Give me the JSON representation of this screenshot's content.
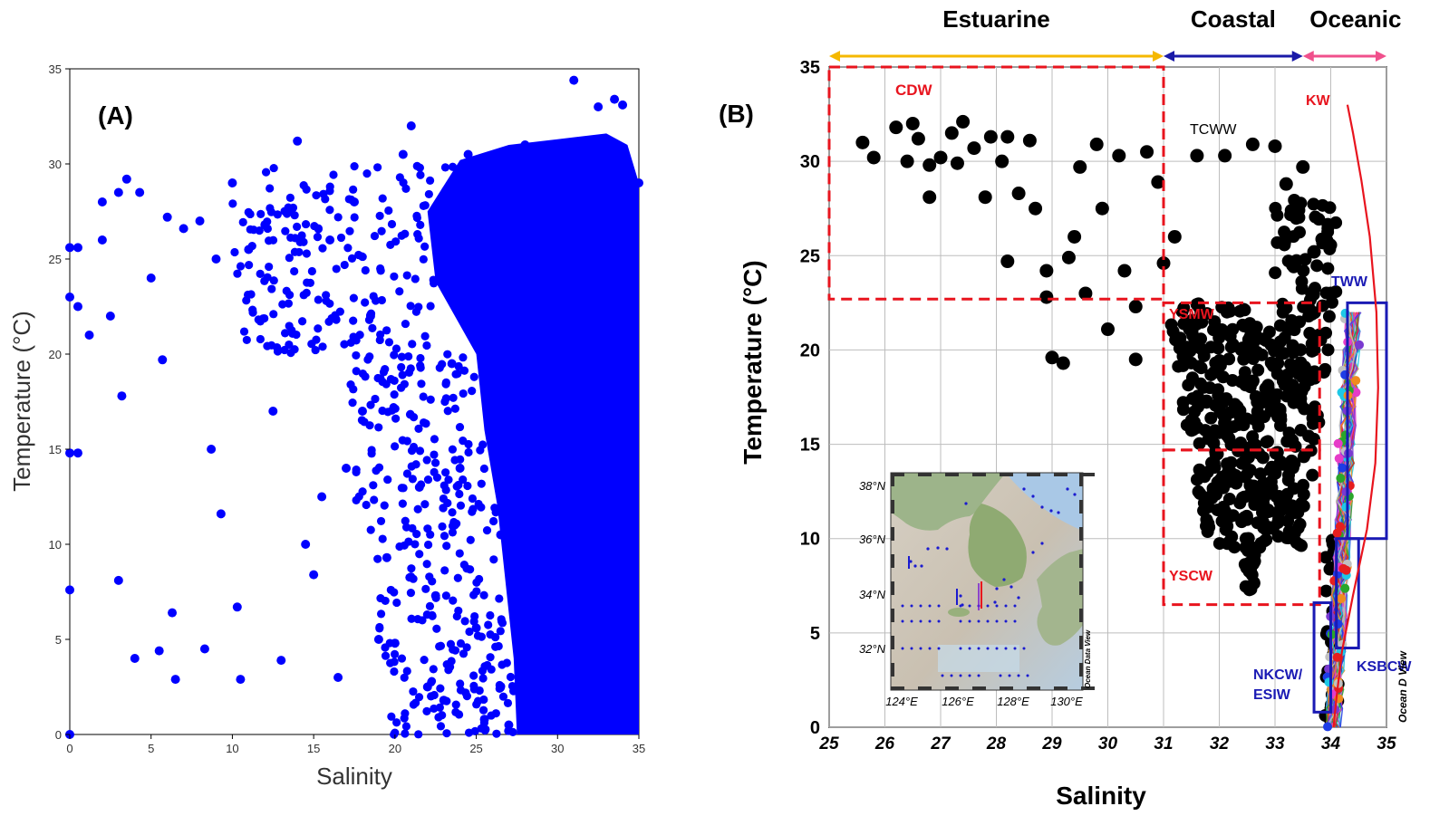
{
  "panel_a": {
    "label": "(A)",
    "xlabel": "Salinity",
    "ylabel": "Temperature (°C)"
  },
  "panel_b": {
    "label": "(B)",
    "xlabel": "Salinity",
    "ylabel": "Temperature (°C)",
    "ranges": [
      {
        "label": "Estuarine",
        "from": 25,
        "to": 31,
        "color": "#f5b800"
      },
      {
        "label": "Coastal",
        "from": 31,
        "to": 33.5,
        "color": "#1a1aa8"
      },
      {
        "label": "Oceanic",
        "from": 33.5,
        "to": 35,
        "color": "#f0508c"
      }
    ],
    "water_masses": {
      "CDW": "CDW",
      "TCWW": "TCWW",
      "KW": "KW",
      "TWW": "TWW",
      "YSMW": "YSMW",
      "YSCW": "YSCW",
      "NKCW": "NKCW/",
      "ESIW": "ESIW",
      "KSBCW": "KSBCW"
    },
    "inset": {
      "lat_labels": [
        "38°N",
        "36°N",
        "34°N",
        "32°N"
      ],
      "lon_labels": [
        "124°E",
        "126°E",
        "128°E",
        "130°E"
      ],
      "watermark": "Ocean Data View",
      "edge_watermark": "Ocean D View"
    }
  },
  "chart_data": [
    {
      "type": "scatter",
      "title": "",
      "xlabel": "Salinity",
      "ylabel": "Temperature (°C)",
      "xlim": [
        0,
        35
      ],
      "ylim": [
        0,
        35
      ],
      "xticks": [
        0,
        5,
        10,
        15,
        20,
        25,
        30,
        35
      ],
      "yticks": [
        0,
        5,
        10,
        15,
        20,
        25,
        30,
        35
      ],
      "grid": false,
      "color": "#0000ff",
      "dense_region": {
        "salinity": [
          27,
          35
        ],
        "temperature": [
          0,
          31
        ]
      },
      "points": [
        [
          0,
          25.6
        ],
        [
          0,
          23
        ],
        [
          0,
          14.8
        ],
        [
          0,
          7.6
        ],
        [
          0,
          0
        ],
        [
          0.5,
          25.6
        ],
        [
          0.5,
          22.5
        ],
        [
          0.5,
          14.8
        ],
        [
          1.2,
          21
        ],
        [
          2,
          28
        ],
        [
          2,
          26
        ],
        [
          2.5,
          22
        ],
        [
          3,
          28.5
        ],
        [
          3,
          8.1
        ],
        [
          3.2,
          17.8
        ],
        [
          3.5,
          29.2
        ],
        [
          4,
          4
        ],
        [
          4.3,
          28.5
        ],
        [
          5,
          24
        ],
        [
          5.5,
          4.4
        ],
        [
          5.7,
          19.7
        ],
        [
          6,
          27.2
        ],
        [
          6.3,
          6.4
        ],
        [
          6.5,
          2.9
        ],
        [
          7,
          26.6
        ],
        [
          8,
          27
        ],
        [
          8.3,
          4.5
        ],
        [
          8.7,
          15
        ],
        [
          9,
          25
        ],
        [
          9.3,
          11.6
        ],
        [
          10,
          29
        ],
        [
          10.3,
          6.7
        ],
        [
          10.5,
          2.9
        ],
        [
          11,
          25.5
        ],
        [
          12,
          26.8
        ],
        [
          12.5,
          17
        ],
        [
          13,
          3.9
        ],
        [
          13.5,
          27.5
        ],
        [
          14,
          31.2
        ],
        [
          14.5,
          10
        ],
        [
          15,
          8.4
        ],
        [
          15.5,
          12.5
        ],
        [
          16,
          26
        ],
        [
          16.5,
          3
        ],
        [
          17,
          14
        ],
        [
          17.5,
          28
        ],
        [
          18,
          17
        ],
        [
          18.5,
          22
        ],
        [
          19,
          5
        ],
        [
          19.5,
          9.3
        ],
        [
          20,
          4.8
        ],
        [
          20.5,
          30.5
        ],
        [
          21,
          32
        ],
        [
          21.5,
          13
        ],
        [
          22,
          2.5
        ],
        [
          22.5,
          7.3
        ],
        [
          23,
          1.8
        ],
        [
          23.5,
          19.5
        ],
        [
          24,
          14
        ],
        [
          24.5,
          30.5
        ],
        [
          25,
          5.6
        ],
        [
          25.5,
          0.8
        ],
        [
          26,
          24
        ],
        [
          26.5,
          10.5
        ],
        [
          27,
          0.5
        ],
        [
          28,
          31
        ],
        [
          29,
          30.2
        ],
        [
          31,
          34.4
        ],
        [
          32.5,
          33
        ],
        [
          33.5,
          33.4
        ],
        [
          34,
          33.1
        ],
        [
          35,
          29
        ]
      ]
    },
    {
      "type": "scatter",
      "title": "",
      "xlabel": "Salinity",
      "ylabel": "Temperature (°C)",
      "xlim": [
        25,
        35
      ],
      "ylim": [
        0,
        35
      ],
      "xticks": [
        25,
        26,
        27,
        28,
        29,
        30,
        31,
        32,
        33,
        34,
        35
      ],
      "yticks": [
        0,
        5,
        10,
        15,
        20,
        25,
        30,
        35
      ],
      "grid": true,
      "color": "#000000",
      "points": [
        [
          25.6,
          31
        ],
        [
          25.8,
          30.2
        ],
        [
          26.2,
          31.8
        ],
        [
          26.4,
          30
        ],
        [
          26.5,
          32
        ],
        [
          26.6,
          31.2
        ],
        [
          26.8,
          29.8
        ],
        [
          26.8,
          28.1
        ],
        [
          27.0,
          30.2
        ],
        [
          27.2,
          31.5
        ],
        [
          27.3,
          29.9
        ],
        [
          27.4,
          32.1
        ],
        [
          27.6,
          30.7
        ],
        [
          27.8,
          28.1
        ],
        [
          27.9,
          31.3
        ],
        [
          28.1,
          30
        ],
        [
          28.2,
          31.3
        ],
        [
          28.2,
          24.7
        ],
        [
          28.4,
          28.3
        ],
        [
          28.6,
          31.1
        ],
        [
          28.7,
          27.5
        ],
        [
          28.9,
          24.2
        ],
        [
          28.9,
          22.8
        ],
        [
          29.0,
          19.6
        ],
        [
          29.2,
          19.3
        ],
        [
          29.3,
          24.9
        ],
        [
          29.4,
          26
        ],
        [
          29.5,
          29.7
        ],
        [
          29.6,
          23
        ],
        [
          29.8,
          30.9
        ],
        [
          29.9,
          27.5
        ],
        [
          30.0,
          21.1
        ],
        [
          30.2,
          30.3
        ],
        [
          30.3,
          24.2
        ],
        [
          30.5,
          22.3
        ],
        [
          30.5,
          19.5
        ],
        [
          30.7,
          30.5
        ],
        [
          30.9,
          28.9
        ],
        [
          31.0,
          24.6
        ],
        [
          31.2,
          26
        ],
        [
          31.6,
          30.3
        ],
        [
          32.1,
          30.3
        ],
        [
          32.6,
          30.9
        ],
        [
          33.0,
          30.8
        ],
        [
          33.2,
          28.8
        ],
        [
          33.5,
          29.7
        ],
        [
          33.7,
          25.2
        ],
        [
          34.0,
          23
        ]
      ],
      "clusters": [
        {
          "name": "YSMW",
          "salinity": [
            31.0,
            33.9
          ],
          "temperature": [
            9.5,
            22.5
          ]
        },
        {
          "name": "YSCW",
          "salinity": [
            32.4,
            32.7
          ],
          "temperature": [
            7.2,
            9.5
          ]
        },
        {
          "name": "TCWW",
          "salinity": [
            33.0,
            34.1
          ],
          "temperature": [
            22.5,
            28
          ]
        },
        {
          "name": "NKCW/ESIW",
          "salinity": [
            33.9,
            34.2
          ],
          "temperature": [
            0,
            10
          ]
        }
      ],
      "boxes": [
        {
          "name": "CDW",
          "salinity": [
            25,
            31
          ],
          "temperature": [
            22.7,
            35
          ],
          "style": "dashed",
          "color": "#e8141e"
        },
        {
          "name": "YSMW",
          "salinity": [
            31,
            33.8
          ],
          "temperature": [
            14.7,
            22.5
          ],
          "style": "dashed",
          "color": "#e8141e"
        },
        {
          "name": "YSCW",
          "salinity": [
            31,
            33.8
          ],
          "temperature": [
            6.5,
            14.7
          ],
          "style": "dashed",
          "color": "#e8141e"
        },
        {
          "name": "TWW",
          "salinity": [
            34.3,
            35
          ],
          "temperature": [
            10,
            22.5
          ],
          "style": "solid",
          "color": "#1a1ab4"
        },
        {
          "name": "KSBCW",
          "salinity": [
            34.1,
            34.5
          ],
          "temperature": [
            4.2,
            10
          ],
          "style": "solid",
          "color": "#1a1ab4"
        },
        {
          "name": "NKCW/ESIW",
          "salinity": [
            33.7,
            34.0
          ],
          "temperature": [
            0.8,
            6.6
          ],
          "style": "solid",
          "color": "#1a1ab4"
        }
      ],
      "kw_curve": [
        [
          34.3,
          33
        ],
        [
          34.4,
          31.5
        ],
        [
          34.55,
          29
        ],
        [
          34.7,
          26
        ],
        [
          34.82,
          22
        ],
        [
          34.85,
          18
        ],
        [
          34.8,
          14
        ],
        [
          34.65,
          10.5
        ],
        [
          34.4,
          7
        ],
        [
          34.2,
          4
        ],
        [
          34.1,
          1.5
        ],
        [
          34.05,
          0
        ]
      ]
    }
  ]
}
